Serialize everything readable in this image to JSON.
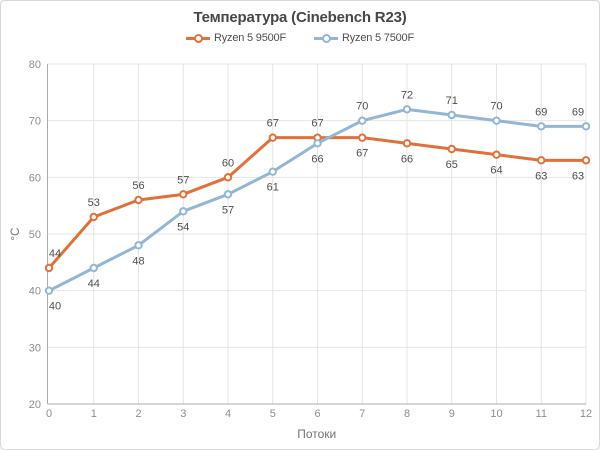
{
  "window": {
    "background": "#ffffff",
    "border_color": "#d8d8d8"
  },
  "chart_data": {
    "type": "line",
    "title": "Температура (Cinebench R23)",
    "xlabel": "Потоки",
    "ylabel": "°C",
    "x": [
      0,
      1,
      2,
      3,
      4,
      5,
      6,
      7,
      8,
      9,
      10,
      11,
      12
    ],
    "ylim": [
      20,
      80
    ],
    "ytick_step": 10,
    "grid": true,
    "legend_position": "top",
    "data_labels_shown": true,
    "series": [
      {
        "name": "Ryzen 5 9500F",
        "color": "#e0713a",
        "values": [
          44,
          53,
          56,
          57,
          60,
          67,
          67,
          67,
          66,
          65,
          64,
          63,
          63
        ]
      },
      {
        "name": "Ryzen 5 7500F",
        "color": "#93b6d6",
        "values": [
          40,
          44,
          48,
          54,
          57,
          61,
          66,
          70,
          72,
          71,
          70,
          69,
          69
        ]
      }
    ],
    "styles": {
      "gridline_color": "#e4e4e4",
      "axis_line_color": "#ababab",
      "tick_label_color": "#8d8d8d",
      "axis_title_color": "#757575",
      "data_label_color": "#4e4e4e",
      "title_color": "#474747"
    }
  }
}
